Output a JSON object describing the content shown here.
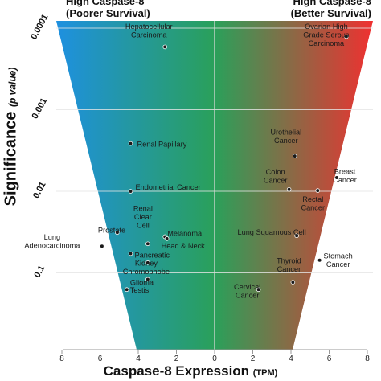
{
  "chart_data": {
    "type": "scatter",
    "header_left": [
      "High Caspase-8",
      "(Poorer Survival)"
    ],
    "header_right": [
      "High Caspase-8",
      "(Better Survival)"
    ],
    "xlabel": "Caspase-8 Expression",
    "xlabel_unit": "(TPM)",
    "ylabel": "Significance",
    "ylabel_unit": "(p value)",
    "x_ticks": [
      "8",
      "6",
      "4",
      "2",
      "0",
      "2",
      "4",
      "6",
      "8"
    ],
    "y_ticks": [
      "0.0001",
      "0.001",
      "0.01",
      "0.1"
    ],
    "y_scale": "log (inverted)",
    "xlim": [
      -8,
      8
    ],
    "gradient_colors": {
      "left": "#1e90e0",
      "middle": "#2aa05a",
      "right": "#f03030"
    },
    "points": [
      {
        "label": [
          "Hepatocellular",
          "Carcinoma"
        ],
        "x": -2.6,
        "p": 0.00017
      },
      {
        "label": [
          "Renal Papillary"
        ],
        "x": -4.4,
        "p": 0.0026
      },
      {
        "label": [
          "Endometrial Cancer"
        ],
        "x": -4.4,
        "p": 0.01
      },
      {
        "label": [
          "Lung",
          "Adenocarcinoma"
        ],
        "x": -5.9,
        "p": 0.047
      },
      {
        "label": [
          "Prostate"
        ],
        "x": -5.1,
        "p": 0.032
      },
      {
        "label": [
          "Renal",
          "Clear",
          "Cell"
        ],
        "x": -3.5,
        "p": 0.044
      },
      {
        "label": [
          "Melanoma"
        ],
        "x": -2.6,
        "p": 0.036
      },
      {
        "label": [
          "Head & Neck"
        ],
        "x": -2.5,
        "p": 0.038
      },
      {
        "label": [
          "Pancreatic"
        ],
        "x": -4.4,
        "p": 0.058
      },
      {
        "label": [
          "Kidney",
          "Chromophobe"
        ],
        "x": -3.5,
        "p": 0.075
      },
      {
        "label": [
          "Glioma"
        ],
        "x": -3.5,
        "p": 0.12
      },
      {
        "label": [
          "Testis"
        ],
        "x": -4.6,
        "p": 0.16
      },
      {
        "label": [
          "Ovarian High",
          "Grade Serous",
          "Carcinoma"
        ],
        "x": 6.9,
        "p": 0.000127
      },
      {
        "label": [
          "Urothelial",
          "Cancer"
        ],
        "x": 4.2,
        "p": 0.0037
      },
      {
        "label": [
          "Colon",
          "Cancer"
        ],
        "x": 3.9,
        "p": 0.0095
      },
      {
        "label": [
          "Breast",
          "Cancer"
        ],
        "x": 6.4,
        "p": 0.0068
      },
      {
        "label": [
          "Rectal",
          "Cancer"
        ],
        "x": 5.4,
        "p": 0.0098
      },
      {
        "label": [
          "Lung Squamous Cell"
        ],
        "x": 4.3,
        "p": 0.035
      },
      {
        "label": [
          "Stomach",
          "Cancer"
        ],
        "x": 5.5,
        "p": 0.07
      },
      {
        "label": [
          "Thyroid",
          "Cancer"
        ],
        "x": 4.1,
        "p": 0.13
      },
      {
        "label": [
          "Cervical",
          "Cancer"
        ],
        "x": 2.3,
        "p": 0.16
      }
    ]
  }
}
